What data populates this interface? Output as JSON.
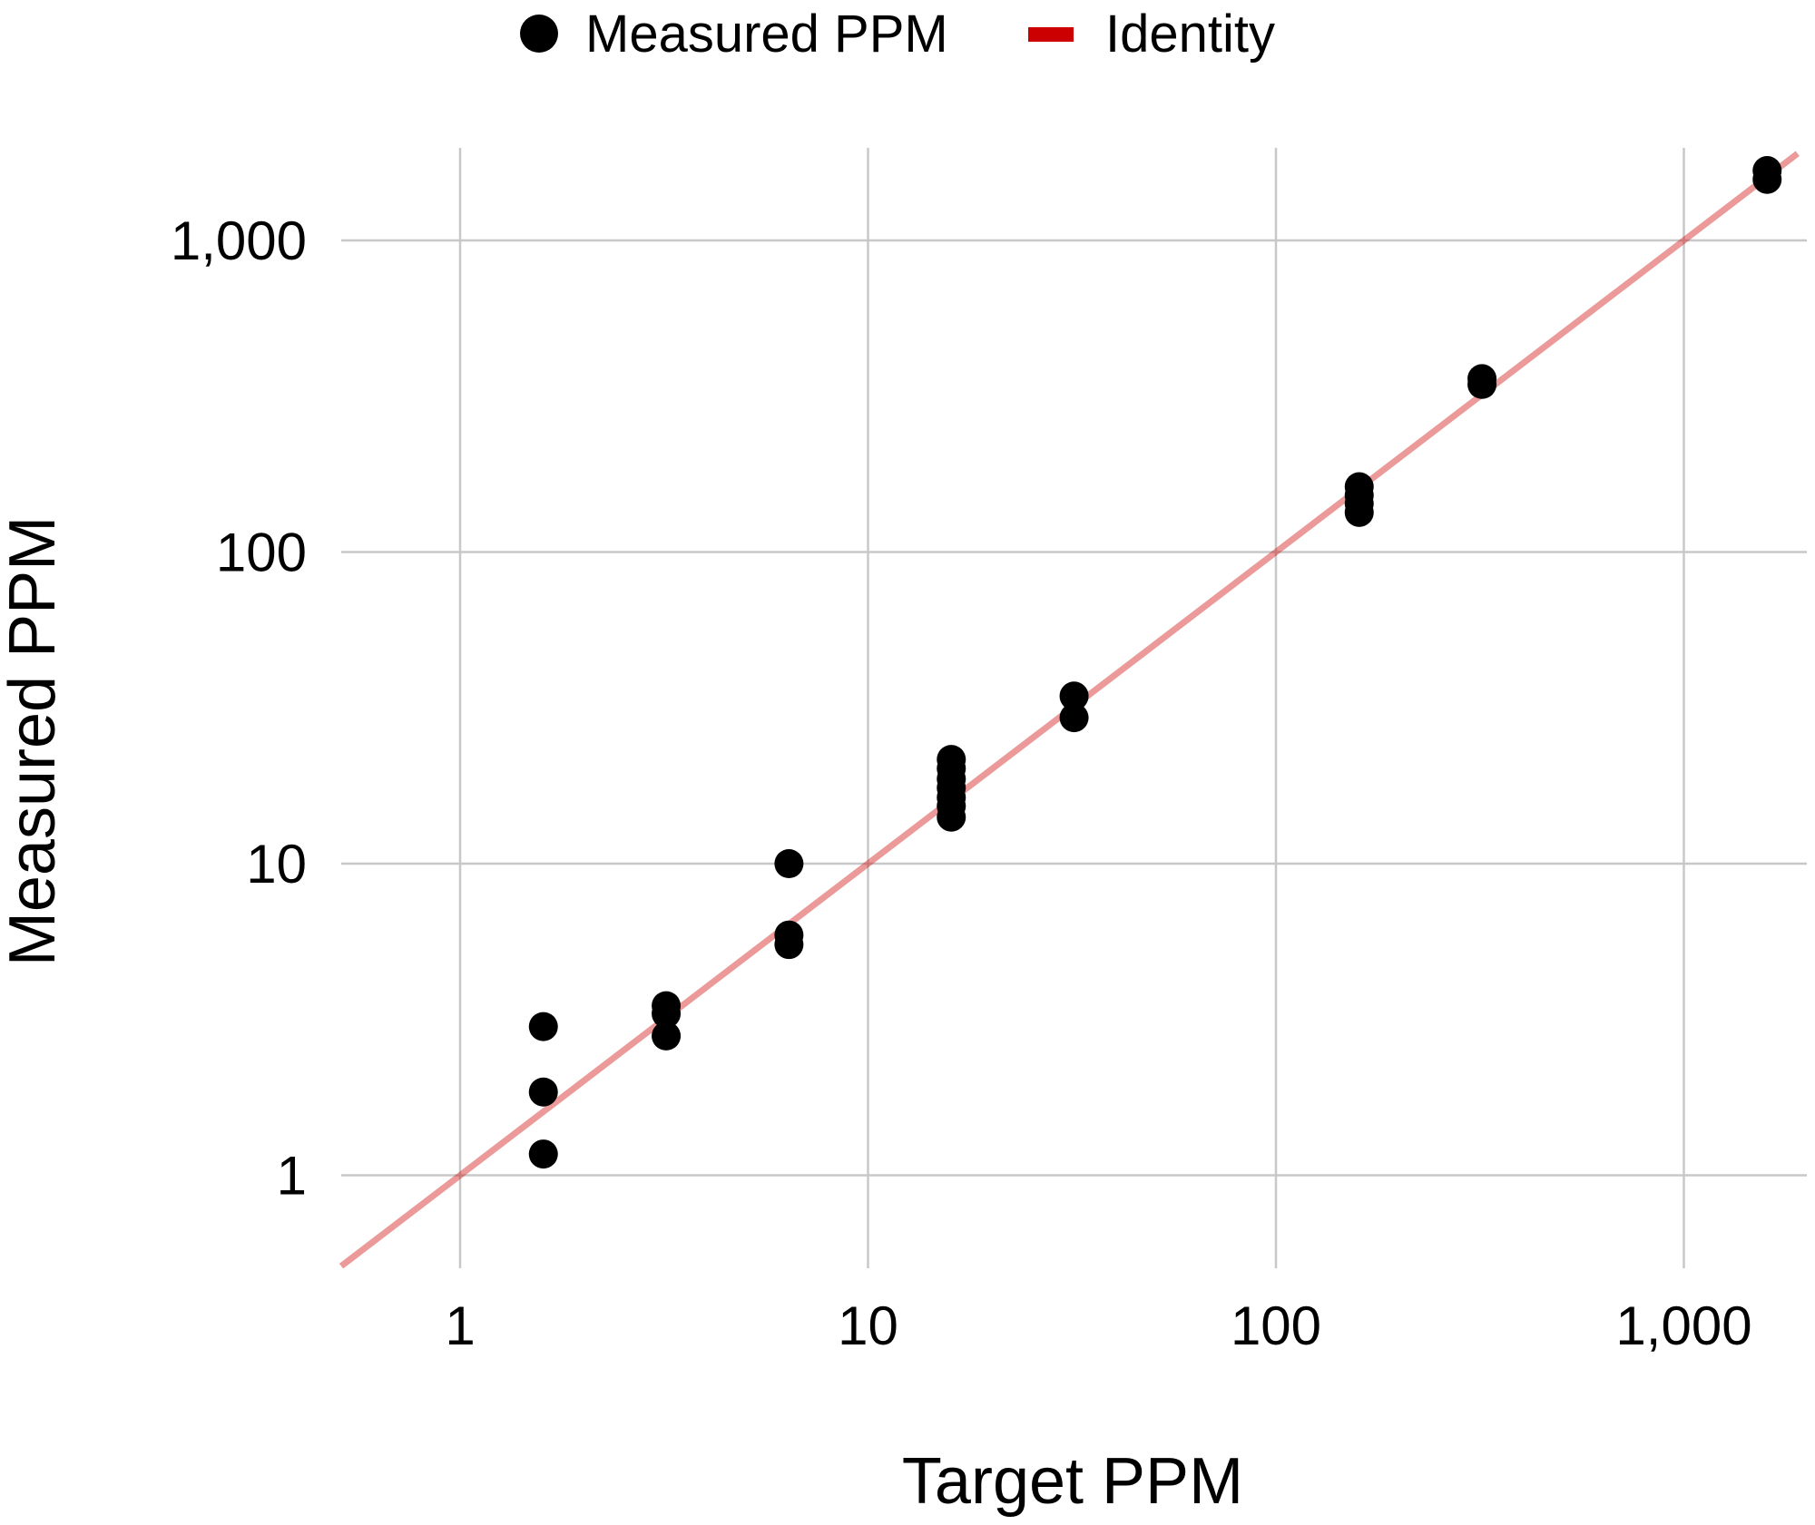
{
  "legend": {
    "items": [
      {
        "label": "Measured PPM",
        "key": "point",
        "color": "#000000"
      },
      {
        "label": "Identity",
        "key": "line",
        "color": "#CC0000"
      }
    ]
  },
  "axes": {
    "x_title": "Target PPM",
    "y_title": "Measured PPM",
    "x_ticks": [
      "1",
      "10",
      "100",
      "1,000"
    ],
    "y_ticks": [
      "1",
      "10",
      "100",
      "1,000"
    ]
  },
  "colors": {
    "points": "#000000",
    "identity_line": "#CC0000",
    "identity_line_opacity": 0.4,
    "grid": "#C8C8C8",
    "background": "#FFFFFF"
  },
  "chart_data": {
    "type": "scatter",
    "title": "",
    "xlabel": "Target PPM",
    "ylabel": "Measured PPM",
    "xscale": "log10",
    "yscale": "log10",
    "xlim": [
      0.51,
      1900
    ],
    "ylim": [
      0.45,
      1900
    ],
    "x_tick_values": [
      1,
      10,
      100,
      1000
    ],
    "y_tick_values": [
      1,
      10,
      100,
      1000
    ],
    "x_tick_labels": [
      "1",
      "10",
      "100",
      "1,000"
    ],
    "y_tick_labels": [
      "1",
      "10",
      "100",
      "1,000"
    ],
    "grid": true,
    "legend_position": "top",
    "series": [
      {
        "name": "Measured PPM",
        "type": "scatter",
        "points": [
          {
            "x": 1.6,
            "y": 3.0
          },
          {
            "x": 1.6,
            "y": 1.85
          },
          {
            "x": 1.6,
            "y": 1.17
          },
          {
            "x": 3.2,
            "y": 3.5
          },
          {
            "x": 3.2,
            "y": 3.3
          },
          {
            "x": 3.2,
            "y": 2.8
          },
          {
            "x": 6.4,
            "y": 10.0
          },
          {
            "x": 6.4,
            "y": 5.9
          },
          {
            "x": 6.4,
            "y": 5.5
          },
          {
            "x": 16,
            "y": 21.6
          },
          {
            "x": 16,
            "y": 20.2
          },
          {
            "x": 16,
            "y": 18.7
          },
          {
            "x": 16,
            "y": 17.5
          },
          {
            "x": 16,
            "y": 16.3
          },
          {
            "x": 16,
            "y": 15.3
          },
          {
            "x": 16,
            "y": 14.1
          },
          {
            "x": 32,
            "y": 34.5
          },
          {
            "x": 32,
            "y": 29.4
          },
          {
            "x": 160,
            "y": 162
          },
          {
            "x": 160,
            "y": 152
          },
          {
            "x": 160,
            "y": 143
          },
          {
            "x": 160,
            "y": 134
          },
          {
            "x": 320,
            "y": 360
          },
          {
            "x": 320,
            "y": 345
          },
          {
            "x": 1600,
            "y": 1675
          },
          {
            "x": 1600,
            "y": 1570
          }
        ]
      },
      {
        "name": "Identity",
        "type": "line",
        "x": [
          0.51,
          1900
        ],
        "y": [
          0.51,
          1900
        ]
      }
    ]
  }
}
